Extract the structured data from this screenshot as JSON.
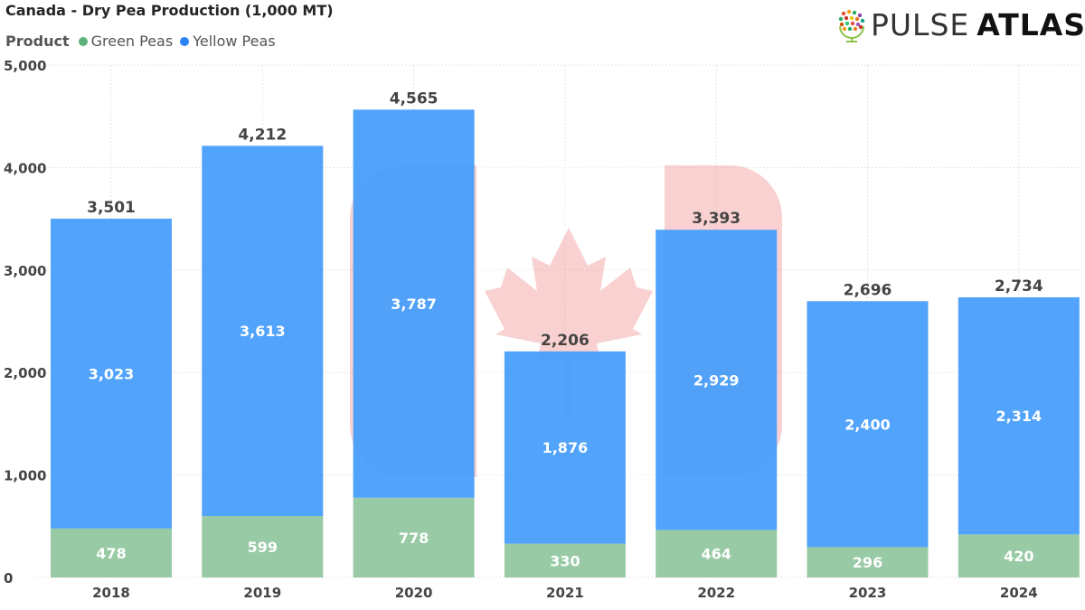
{
  "header": {
    "title": "Canada - Dry Pea Production (1,000 MT)",
    "legend_title": "Product",
    "logo_part1": "PULSE",
    "logo_part2": "ATLAS"
  },
  "colors": {
    "green": "#95c8a2",
    "green_dot": "#5cb27a",
    "yellow": "#4a9ffb",
    "yellow_dot": "#2b83f6",
    "flag": "#f29a9a",
    "grid": "#e4e4e4"
  },
  "chart_data": {
    "type": "bar",
    "stacked": true,
    "title": "Canada - Dry Pea Production (1,000 MT)",
    "categories": [
      "2018",
      "2019",
      "2020",
      "2021",
      "2022",
      "2023",
      "2024"
    ],
    "series": [
      {
        "name": "Green Peas",
        "values": [
          478,
          599,
          778,
          330,
          464,
          296,
          420
        ]
      },
      {
        "name": "Yellow Peas",
        "values": [
          3023,
          3613,
          3787,
          1876,
          2929,
          2400,
          2314
        ]
      }
    ],
    "totals": [
      3501,
      4212,
      4565,
      2206,
      3393,
      2696,
      2734
    ],
    "yticks": [
      "0",
      "1,000",
      "2,000",
      "3,000",
      "4,000",
      "5,000"
    ],
    "ylim": [
      0,
      5000
    ],
    "legend_position": "top-left",
    "grid": true
  }
}
